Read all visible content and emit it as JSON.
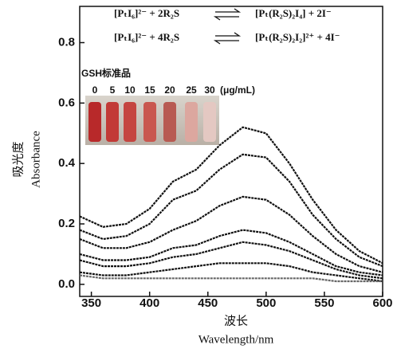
{
  "chart_data": {
    "type": "line",
    "equations": [
      {
        "left": "[PₜI₆]²⁻ + 2R₂S",
        "right": "[Pₜ(R₂S)₂I₄] + 2I⁻"
      },
      {
        "left": "[PₜI₆]²⁻ + 4R₂S",
        "right": "[Pₜ(R₂S)₂I₂]²⁺ + 4I⁻"
      }
    ],
    "inset_title": "GSH标准品",
    "inset_labels": [
      "0",
      "5",
      "10",
      "15",
      "20",
      "25",
      "30",
      "(μg/mL)"
    ],
    "x_label": "波长",
    "x_label_en": "Wavelength/nm",
    "y_label": "吸光度",
    "y_label_en": "Absorbance",
    "x": [
      340,
      360,
      380,
      400,
      420,
      440,
      460,
      480,
      500,
      520,
      540,
      560,
      580,
      600
    ],
    "series": [
      {
        "color": "#111111",
        "values": [
          0.225,
          0.19,
          0.2,
          0.25,
          0.34,
          0.38,
          0.46,
          0.52,
          0.5,
          0.4,
          0.28,
          0.18,
          0.11,
          0.07
        ]
      },
      {
        "color": "#111111",
        "values": [
          0.18,
          0.15,
          0.16,
          0.2,
          0.28,
          0.31,
          0.38,
          0.43,
          0.42,
          0.34,
          0.23,
          0.15,
          0.09,
          0.06
        ]
      },
      {
        "color": "#111111",
        "values": [
          0.15,
          0.12,
          0.12,
          0.14,
          0.18,
          0.21,
          0.26,
          0.29,
          0.28,
          0.23,
          0.16,
          0.1,
          0.06,
          0.04
        ]
      },
      {
        "color": "#111111",
        "values": [
          0.1,
          0.08,
          0.08,
          0.09,
          0.12,
          0.13,
          0.16,
          0.18,
          0.17,
          0.14,
          0.1,
          0.06,
          0.04,
          0.03
        ]
      },
      {
        "color": "#111111",
        "values": [
          0.08,
          0.06,
          0.06,
          0.07,
          0.09,
          0.1,
          0.12,
          0.14,
          0.13,
          0.11,
          0.08,
          0.05,
          0.03,
          0.02
        ]
      },
      {
        "color": "#111111",
        "values": [
          0.04,
          0.03,
          0.03,
          0.04,
          0.05,
          0.06,
          0.07,
          0.07,
          0.07,
          0.06,
          0.04,
          0.03,
          0.02,
          0.01
        ]
      },
      {
        "color": "#666666",
        "values": [
          0.03,
          0.02,
          0.02,
          0.02,
          0.02,
          0.02,
          0.02,
          0.02,
          0.02,
          0.02,
          0.02,
          0.01,
          0.01,
          0.01
        ]
      }
    ],
    "xlim": [
      340,
      600
    ],
    "ylim": [
      -0.04,
      0.92
    ],
    "xticks": [
      350,
      400,
      450,
      500,
      550,
      600
    ],
    "yticks": [
      {
        "value": 0,
        "label": "0.0"
      },
      0.2,
      0.4,
      0.6,
      0.8
    ]
  }
}
